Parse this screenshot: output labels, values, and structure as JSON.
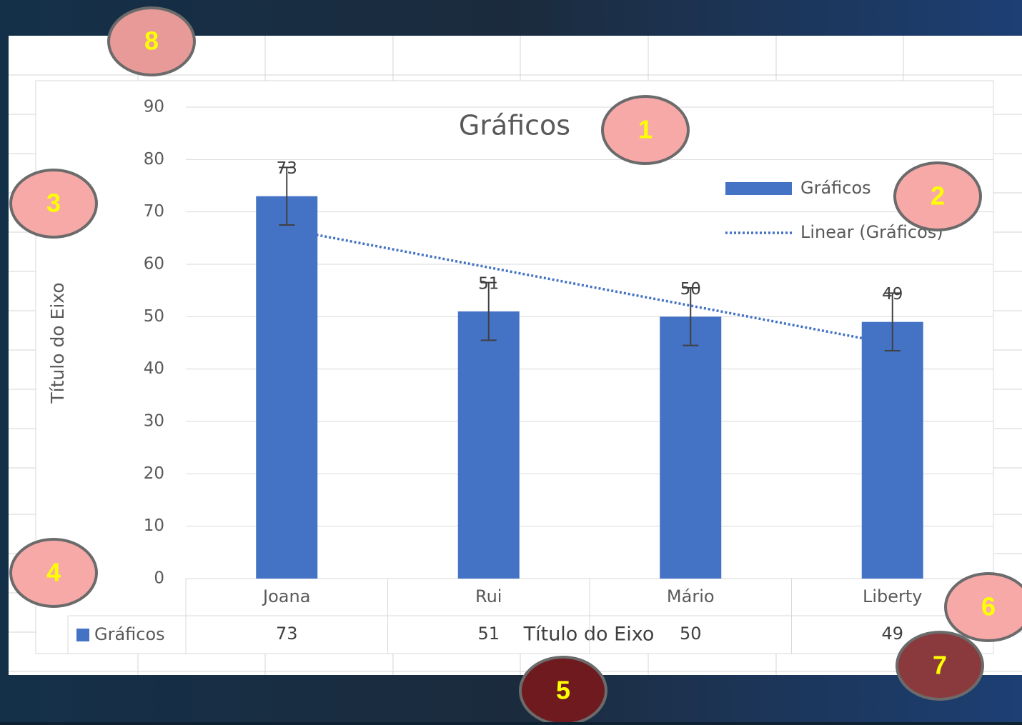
{
  "chart_data": {
    "type": "bar",
    "title": "Gráficos",
    "x_label": "Título do Eixo",
    "y_label": "Título do Eixo",
    "categories": [
      "Joana",
      "Rui",
      "Mário",
      "Liberty"
    ],
    "series": [
      {
        "name": "Gráficos",
        "color": "#4472c4",
        "values": [
          73,
          51,
          50,
          49
        ],
        "errors": [
          5.5,
          5.5,
          5.5,
          5.5
        ]
      }
    ],
    "trendline": {
      "name": "Linear (Gráficos)",
      "color": "#4472c4",
      "values": [
        66.7,
        59.4,
        52.1,
        44.8
      ]
    },
    "ylim": [
      0,
      90
    ],
    "yticks": [
      0,
      10,
      20,
      30,
      40,
      50,
      60,
      70,
      80,
      90
    ],
    "grid": true,
    "legend": "top-right",
    "data_table": true
  },
  "annotations": [
    "1",
    "2",
    "3",
    "4",
    "5",
    "6",
    "7",
    "8"
  ]
}
